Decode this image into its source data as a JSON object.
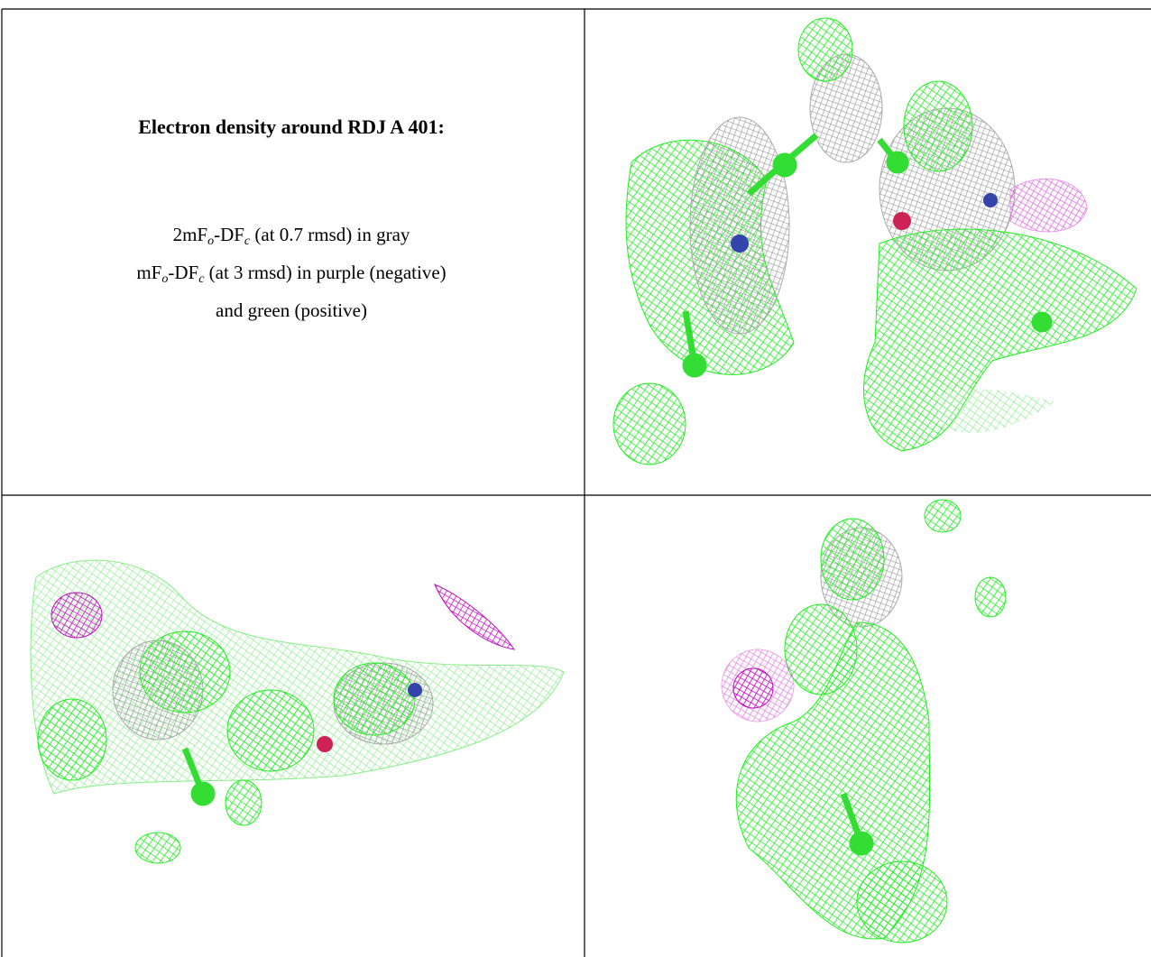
{
  "header": {
    "title": "Electron density around RDJ A 401:"
  },
  "legend": {
    "lines": [
      [
        "2mF",
        "o",
        "-DF",
        "c",
        " (at 0.7 rmsd) in gray"
      ],
      [
        "mF",
        "o",
        "-DF",
        "c",
        " (at 3 rmsd) in purple (negative)"
      ],
      [
        "and green (positive)"
      ]
    ]
  }
}
